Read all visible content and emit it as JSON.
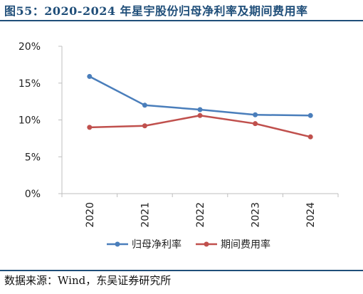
{
  "header": {
    "title": "图55：2020-2024 年星宇股份归母净利率及期间费用率"
  },
  "footer": {
    "source": "数据来源：Wind，东吴证券研究所"
  },
  "chart_data": {
    "type": "line",
    "categories": [
      "2020",
      "2021",
      "2022",
      "2023",
      "2024"
    ],
    "series": [
      {
        "name": "归母净利率",
        "color": "#4a7ebb",
        "values": [
          15.9,
          12.0,
          11.4,
          10.7,
          10.6
        ]
      },
      {
        "name": "期间费用率",
        "color": "#c0504d",
        "values": [
          9.0,
          9.2,
          10.6,
          9.5,
          7.7
        ]
      }
    ],
    "ylim": [
      0,
      20
    ],
    "yticks": [
      0,
      5,
      10,
      15,
      20
    ],
    "ytick_labels": [
      "0%",
      "5%",
      "10%",
      "15%",
      "20%"
    ],
    "title": "",
    "xlabel": "",
    "ylabel": "",
    "legend_position": "bottom",
    "grid": false,
    "axis_color": "#bfbfbf"
  }
}
